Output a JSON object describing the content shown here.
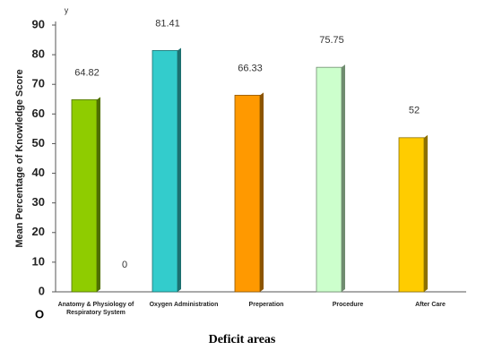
{
  "chart_data": {
    "type": "bar",
    "y_axis_label": "Mean Percentage of Knowledge Score",
    "x_axis_label": "Deficit areas",
    "y_axis_letter": "y",
    "origin_label": "O",
    "categories": [
      "Anatomy & Physiology of Respiratory System",
      null,
      "Oxygen Administration",
      "Preperation",
      "Procedure",
      "After Care"
    ],
    "values": [
      64.82,
      0,
      81.41,
      66.33,
      75.75,
      52
    ],
    "colors": [
      "#8fcc00",
      "#3366ff",
      "#33cccc",
      "#ff9900",
      "#ccffcc",
      "#ffcc00"
    ],
    "ylim": [
      0,
      90
    ],
    "yticks": [
      0,
      10,
      20,
      30,
      40,
      50,
      60,
      70,
      80,
      90
    ],
    "grid": false
  }
}
